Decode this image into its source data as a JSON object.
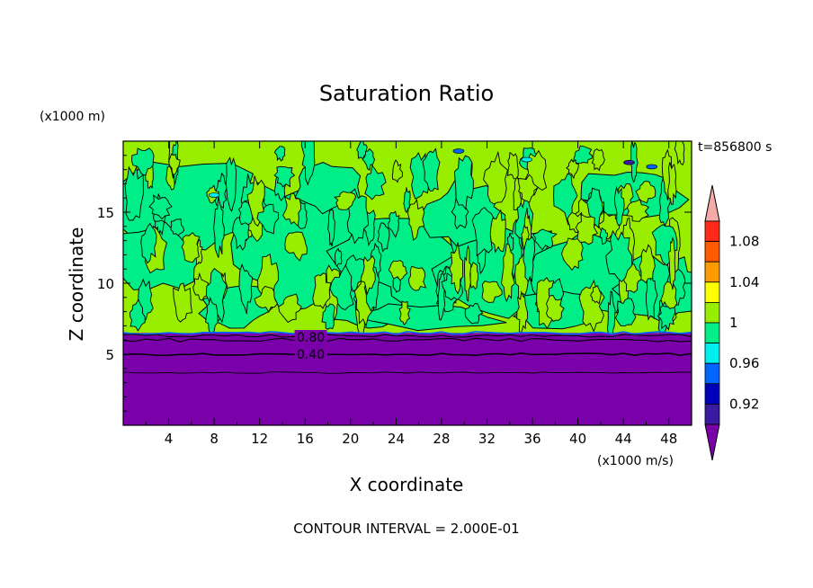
{
  "chart_data": {
    "type": "heatmap",
    "title": "Saturation Ratio",
    "xlabel": "X coordinate",
    "ylabel": "Z coordinate",
    "x_unit": "(x1000 m/s)",
    "y_unit": "(x1000 m)",
    "time_label": "t=856800 s",
    "footer": "CONTOUR INTERVAL = 2.000E-01",
    "xlim": [
      0,
      50
    ],
    "ylim": [
      0,
      20
    ],
    "x_ticks": [
      4,
      8,
      12,
      16,
      20,
      24,
      28,
      32,
      36,
      40,
      44,
      48
    ],
    "y_ticks": [
      5,
      10,
      15
    ],
    "contour_labels": [
      {
        "text": "0.80",
        "x": 16.5,
        "z": 6.2
      },
      {
        "text": "0.40",
        "x": 16.5,
        "z": 5.0
      }
    ],
    "colorbar": {
      "labels": [
        {
          "text": "1.08",
          "value": 1.08
        },
        {
          "text": "1.04",
          "value": 1.04
        },
        {
          "text": "1",
          "value": 1.0
        },
        {
          "text": "0.96",
          "value": 0.96
        },
        {
          "text": "0.92",
          "value": 0.92
        }
      ],
      "levels": [
        {
          "lo": 1.1,
          "hi": null,
          "color": "#f4aaa6"
        },
        {
          "lo": 1.08,
          "hi": 1.1,
          "color": "#ff2a1a"
        },
        {
          "lo": 1.06,
          "hi": 1.08,
          "color": "#ff5a00"
        },
        {
          "lo": 1.04,
          "hi": 1.06,
          "color": "#ff9a00"
        },
        {
          "lo": 1.02,
          "hi": 1.04,
          "color": "#ffff00"
        },
        {
          "lo": 1.0,
          "hi": 1.02,
          "color": "#99ee00"
        },
        {
          "lo": 0.98,
          "hi": 1.0,
          "color": "#00ee88"
        },
        {
          "lo": 0.96,
          "hi": 0.98,
          "color": "#00eeee"
        },
        {
          "lo": 0.94,
          "hi": 0.96,
          "color": "#0066ff"
        },
        {
          "lo": 0.92,
          "hi": 0.94,
          "color": "#0000bb"
        },
        {
          "lo": 0.9,
          "hi": 0.92,
          "color": "#3a1aa0"
        },
        {
          "lo": null,
          "hi": 0.9,
          "color": "#7a00aa"
        }
      ]
    },
    "regions": {
      "dry_layer_top_z": 6.5,
      "dry_color": "#7a00aa",
      "near_saturation_color": "#00ee88",
      "supersaturated_color": "#99ee00"
    }
  }
}
